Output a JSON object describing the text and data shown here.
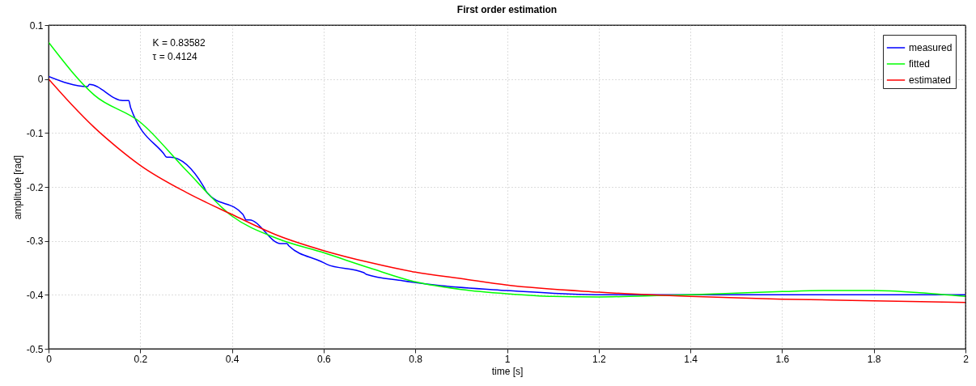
{
  "chart_data": {
    "type": "line",
    "title": "First order estimation",
    "xlabel": "time [s]",
    "ylabel": "amplitude [rad]",
    "annotations": [
      "K = 0.83582",
      "τ = 0.4124"
    ],
    "xlim": [
      0,
      2
    ],
    "xticks": [
      0,
      0.2,
      0.4,
      0.6,
      0.8,
      1,
      1.2,
      1.4,
      1.6,
      1.8,
      2
    ],
    "ylim": [
      -0.5,
      0.1
    ],
    "yticks": [
      -0.5,
      -0.4,
      -0.3,
      -0.2,
      -0.1,
      0,
      0.1
    ],
    "grid": true,
    "legend": "top right",
    "marker": "none",
    "line_style": "solid",
    "series": [
      {
        "name": "measured",
        "color": "#0000ff",
        "x": [
          0,
          0.085,
          0.089,
          0.162,
          0.175,
          0.179,
          0.25,
          0.258,
          0.265,
          0.338,
          0.346,
          0.424,
          0.431,
          0.438,
          0.506,
          0.52,
          0.524,
          0.594,
          0.606,
          0.688,
          0.693,
          0.773,
          0.856,
          1.0,
          1.124,
          1.207,
          1.6,
          2.0
        ],
        "values": [
          0.005,
          -0.014,
          -0.01,
          -0.04,
          -0.04,
          -0.053,
          -0.137,
          -0.145,
          -0.145,
          -0.199,
          -0.211,
          -0.251,
          -0.261,
          -0.261,
          -0.305,
          -0.305,
          -0.309,
          -0.338,
          -0.343,
          -0.359,
          -0.362,
          -0.374,
          -0.383,
          -0.392,
          -0.398,
          -0.4,
          -0.4,
          -0.4
        ]
      },
      {
        "name": "fitted",
        "color": "#00ff00",
        "x": [
          0,
          0.1,
          0.2,
          0.3,
          0.4,
          0.5,
          0.6,
          0.7,
          0.8,
          0.9,
          1.0,
          1.1,
          1.2,
          1.3,
          1.4,
          1.5,
          1.6,
          1.7,
          1.75,
          1.8,
          1.9,
          2.0
        ],
        "values": [
          0.068,
          -0.03,
          -0.08,
          -0.169,
          -0.254,
          -0.296,
          -0.322,
          -0.35,
          -0.376,
          -0.39,
          -0.398,
          -0.403,
          -0.404,
          -0.402,
          -0.4,
          -0.397,
          -0.394,
          -0.392,
          -0.392,
          -0.392,
          -0.396,
          -0.403
        ]
      },
      {
        "name": "estimated",
        "color": "#ff0000",
        "x": [
          0,
          0.05,
          0.1,
          0.15,
          0.2,
          0.3,
          0.4,
          0.5,
          0.6,
          0.7,
          0.8,
          0.9,
          1.0,
          1.2,
          1.4,
          1.6,
          1.8,
          2.0
        ],
        "values": [
          0,
          -0.047,
          -0.09,
          -0.127,
          -0.16,
          -0.21,
          -0.251,
          -0.29,
          -0.318,
          -0.34,
          -0.358,
          -0.37,
          -0.382,
          -0.395,
          -0.403,
          -0.408,
          -0.411,
          -0.414
        ]
      }
    ]
  }
}
